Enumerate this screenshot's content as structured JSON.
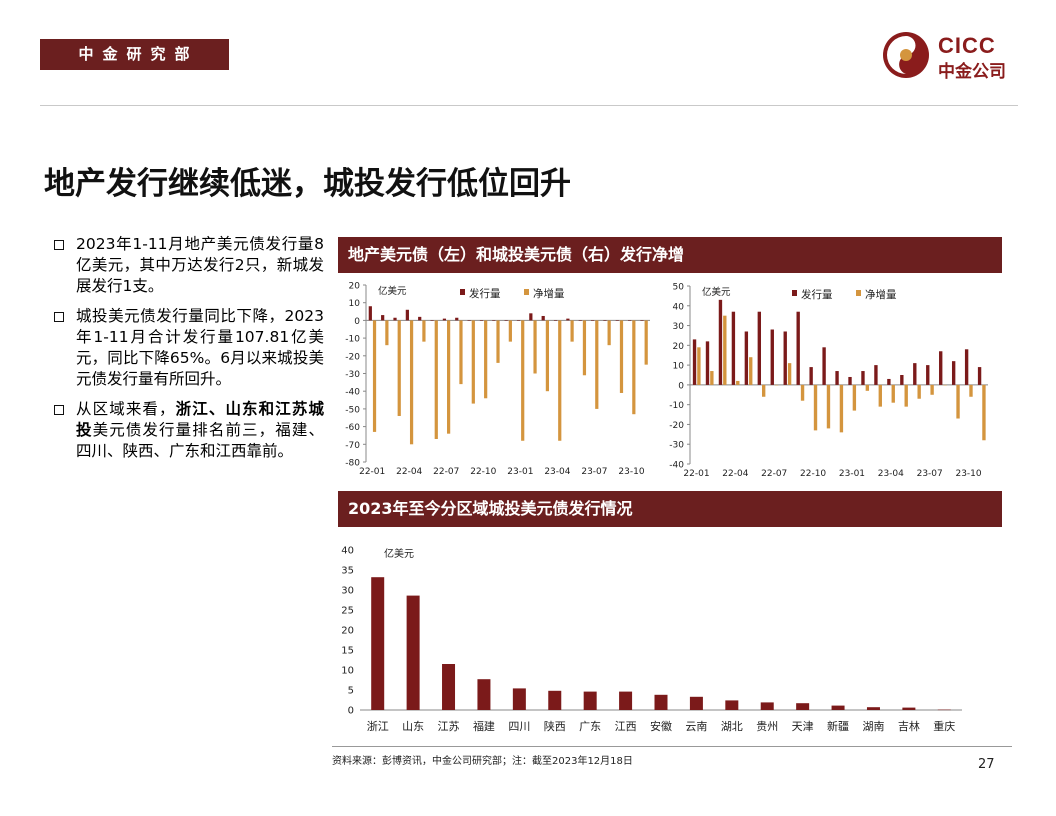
{
  "header": {
    "department": "中金研究部",
    "logo_text": "CICC",
    "logo_subtext": "中金公司"
  },
  "page_title": "地产发行继续低迷，城投发行低位回升",
  "bullets": [
    {
      "text": "2023年1-11月地产美元债发行量8亿美元，其中万达发行2只，新城发展发行1支。"
    },
    {
      "text": "城投美元债发行量同比下降，2023年1-11月合计发行量107.81亿美元，同比下降65%。6月以来城投美元债发行量有所回升。"
    },
    {
      "pre": "从区域来看，",
      "bold": "浙江、山东和江苏城投",
      "post": "美元债发行量排名前三，福建、四川、陕西、广东和江西靠前。"
    }
  ],
  "banner1": "地产美元债（左）和城投美元债（右）发行净增",
  "banner2": "2023年至今分区域城投美元债发行情况",
  "colors": {
    "issue": "#7b1a1a",
    "net": "#d4953e",
    "banner": "#6b1f1f"
  },
  "footer": {
    "source": "资料来源：彭博资讯，中金公司研究部；注：截至2023年12月18日",
    "page_number": "27"
  },
  "chart_data": [
    {
      "type": "bar",
      "unit_label": "亿美元",
      "ylim": [
        -80,
        20
      ],
      "yticks": [
        20,
        10,
        0,
        -10,
        -20,
        -30,
        -40,
        -50,
        -60,
        -70,
        -80
      ],
      "xtick_labels": [
        "22-01",
        "22-04",
        "22-07",
        "22-10",
        "23-01",
        "23-04",
        "23-07",
        "23-10"
      ],
      "series": [
        {
          "name": "发行量",
          "values": [
            8,
            3,
            1.5,
            6,
            2,
            0,
            1,
            1.5,
            0,
            0,
            0,
            0,
            0,
            4,
            2.5,
            0,
            1,
            0,
            0,
            0,
            0,
            0,
            0
          ]
        },
        {
          "name": "净增量",
          "values": [
            -63,
            -14,
            -54,
            -70,
            -12,
            -67,
            -64,
            -36,
            -47,
            -44,
            -24,
            -12,
            -68,
            -30,
            -40,
            -68,
            -12,
            -31,
            -50,
            -14,
            -41,
            -53,
            -25
          ]
        }
      ]
    },
    {
      "type": "bar",
      "unit_label": "亿美元",
      "ylim": [
        -40,
        50
      ],
      "yticks": [
        50,
        40,
        30,
        20,
        10,
        0,
        -10,
        -20,
        -30,
        -40
      ],
      "xtick_labels": [
        "22-01",
        "22-04",
        "22-07",
        "22-10",
        "23-01",
        "23-04",
        "23-07",
        "23-10"
      ],
      "series": [
        {
          "name": "发行量",
          "values": [
            23,
            22,
            43,
            37,
            27,
            37,
            28,
            27,
            37,
            9,
            19,
            7,
            4,
            7,
            10,
            3,
            5,
            11,
            10,
            17,
            12,
            18,
            9
          ]
        },
        {
          "name": "净增量",
          "values": [
            19,
            7,
            35,
            2,
            14,
            -6,
            0,
            11,
            -8,
            -23,
            -22,
            -24,
            -13,
            -3,
            -11,
            -9,
            -11,
            -7,
            -5,
            0,
            -17,
            -6,
            -28
          ]
        }
      ]
    },
    {
      "type": "bar",
      "unit_label": "亿美元",
      "ylim": [
        0,
        40
      ],
      "yticks": [
        40,
        35,
        30,
        25,
        20,
        15,
        10,
        5,
        0
      ],
      "categories": [
        "浙江",
        "山东",
        "江苏",
        "福建",
        "四川",
        "陕西",
        "广东",
        "江西",
        "安徽",
        "云南",
        "湖北",
        "贵州",
        "天津",
        "新疆",
        "湖南",
        "吉林",
        "重庆"
      ],
      "values": [
        33.2,
        28.6,
        11.5,
        7.7,
        5.4,
        4.8,
        4.6,
        4.6,
        3.8,
        3.3,
        2.4,
        1.9,
        1.7,
        1.1,
        0.7,
        0.6,
        0.1
      ]
    }
  ]
}
